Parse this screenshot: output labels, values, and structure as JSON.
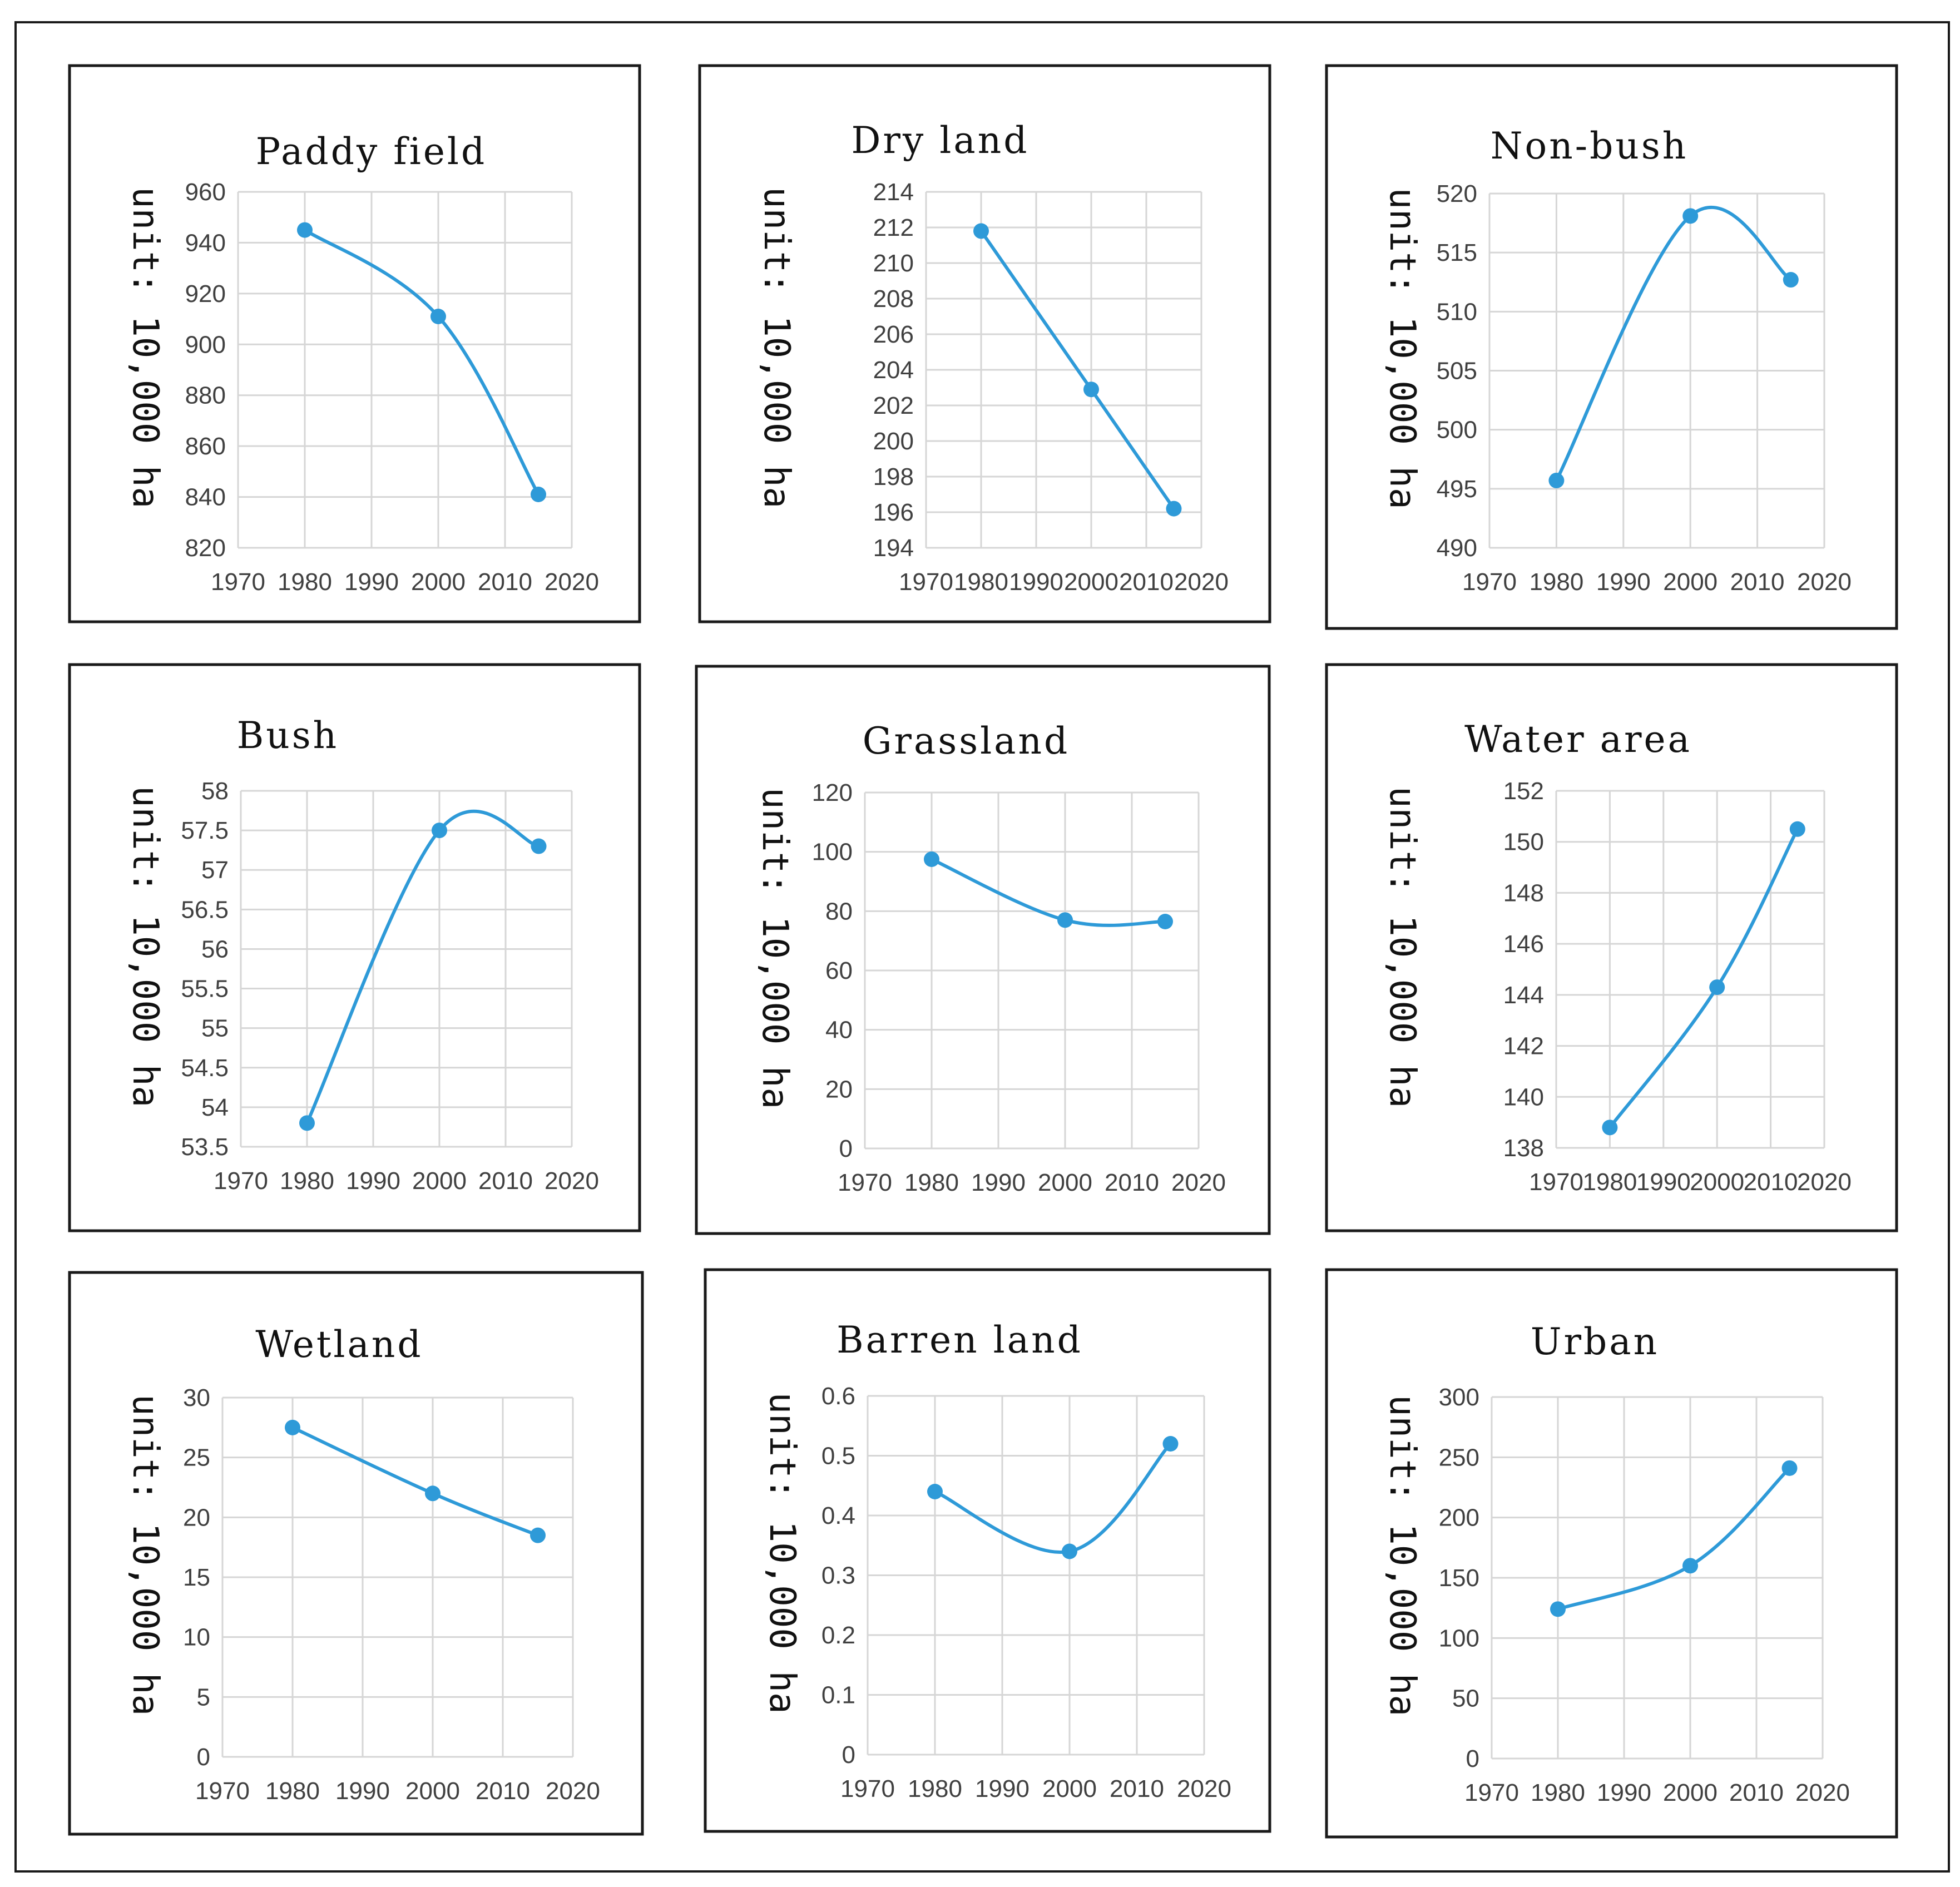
{
  "figure": {
    "series_color": "#2E9AD8",
    "border_color": "#1a1a1a",
    "grid_color": "#d6d6d6"
  },
  "chart_data": [
    {
      "type": "line",
      "title": "Paddy field",
      "ylabel": "unit: 10,000 ha",
      "xlabel": "",
      "x": [
        1980,
        2000,
        2015
      ],
      "values": [
        945,
        911,
        841
      ],
      "xlim": [
        1970,
        2020
      ],
      "xticks": [
        1970,
        1980,
        1990,
        2000,
        2010,
        2020
      ],
      "ylim": [
        820,
        960
      ],
      "yticks": [
        820,
        840,
        860,
        880,
        900,
        920,
        940,
        960
      ],
      "grid": true
    },
    {
      "type": "line",
      "title": "Dry land",
      "ylabel": "unit: 10,000 ha",
      "xlabel": "",
      "x": [
        1980,
        2000,
        2015
      ],
      "values": [
        211.8,
        202.9,
        196.2
      ],
      "xlim": [
        1970,
        2020
      ],
      "xticks": [
        1970,
        1980,
        1990,
        2000,
        2010,
        2020
      ],
      "ylim": [
        194,
        214
      ],
      "yticks": [
        194,
        196,
        198,
        200,
        202,
        204,
        206,
        208,
        210,
        212,
        214
      ],
      "grid": true
    },
    {
      "type": "line",
      "title": "Non-bush",
      "ylabel": "unit: 10,000 ha",
      "xlabel": "",
      "x": [
        1980,
        2000,
        2015
      ],
      "values": [
        495.7,
        518.1,
        512.7
      ],
      "xlim": [
        1970,
        2020
      ],
      "xticks": [
        1970,
        1980,
        1990,
        2000,
        2010,
        2020
      ],
      "ylim": [
        490,
        520
      ],
      "yticks": [
        490,
        495,
        500,
        505,
        510,
        515,
        520
      ],
      "grid": true
    },
    {
      "type": "line",
      "title": "Bush",
      "ylabel": "unit: 10,000 ha",
      "xlabel": "",
      "x": [
        1980,
        2000,
        2015
      ],
      "values": [
        53.8,
        57.5,
        57.3
      ],
      "xlim": [
        1970,
        2020
      ],
      "xticks": [
        1970,
        1980,
        1990,
        2000,
        2010,
        2020
      ],
      "ylim": [
        53.5,
        58
      ],
      "yticks": [
        53.5,
        54,
        54.5,
        55,
        55.5,
        56,
        56.5,
        57,
        57.5,
        58
      ],
      "grid": true
    },
    {
      "type": "line",
      "title": "Grassland",
      "ylabel": "unit: 10,000 ha",
      "xlabel": "",
      "x": [
        1980,
        2000,
        2015
      ],
      "values": [
        97.5,
        77,
        76.5
      ],
      "xlim": [
        1970,
        2020
      ],
      "xticks": [
        1970,
        1980,
        1990,
        2000,
        2010,
        2020
      ],
      "ylim": [
        0,
        120
      ],
      "yticks": [
        0,
        20,
        40,
        60,
        80,
        100,
        120
      ],
      "grid": true
    },
    {
      "type": "line",
      "title": "Water area",
      "ylabel": "unit: 10,000 ha",
      "xlabel": "",
      "x": [
        1980,
        2000,
        2015
      ],
      "values": [
        138.8,
        144.3,
        150.5
      ],
      "xlim": [
        1970,
        2020
      ],
      "xticks": [
        1970,
        1980,
        1990,
        2000,
        2010,
        2020
      ],
      "ylim": [
        138,
        152
      ],
      "yticks": [
        138,
        140,
        142,
        144,
        146,
        148,
        150,
        152
      ],
      "grid": true
    },
    {
      "type": "line",
      "title": "Wetland",
      "ylabel": "unit: 10,000 ha",
      "xlabel": "",
      "x": [
        1980,
        2000,
        2015
      ],
      "values": [
        27.5,
        22,
        18.5
      ],
      "xlim": [
        1970,
        2020
      ],
      "xticks": [
        1970,
        1980,
        1990,
        2000,
        2010,
        2020
      ],
      "ylim": [
        0,
        30
      ],
      "yticks": [
        0,
        5,
        10,
        15,
        20,
        25,
        30
      ],
      "grid": true
    },
    {
      "type": "line",
      "title": "Barren land",
      "ylabel": "unit: 10,000 ha",
      "xlabel": "",
      "x": [
        1980,
        2000,
        2015
      ],
      "values": [
        0.44,
        0.34,
        0.52
      ],
      "xlim": [
        1970,
        2020
      ],
      "xticks": [
        1970,
        1980,
        1990,
        2000,
        2010,
        2020
      ],
      "ylim": [
        0,
        0.6
      ],
      "yticks": [
        0,
        0.1,
        0.2,
        0.3,
        0.4,
        0.5,
        0.6
      ],
      "grid": true
    },
    {
      "type": "line",
      "title": "Urban",
      "ylabel": "unit: 10,000 ha",
      "xlabel": "",
      "x": [
        1980,
        2000,
        2015
      ],
      "values": [
        124,
        160,
        241
      ],
      "xlim": [
        1970,
        2020
      ],
      "xticks": [
        1970,
        1980,
        1990,
        2000,
        2010,
        2020
      ],
      "ylim": [
        0,
        300
      ],
      "yticks": [
        0,
        50,
        100,
        150,
        200,
        250,
        300
      ],
      "grid": true
    }
  ]
}
